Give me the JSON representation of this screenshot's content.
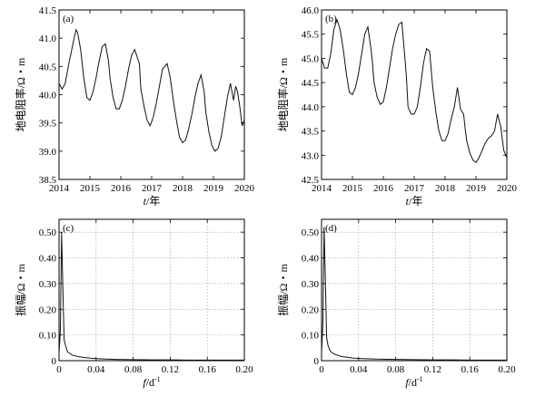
{
  "chart_data": [
    {
      "type": "line",
      "panel_label": "(a)",
      "xlabel_var": "t",
      "xlabel_unit": "/年",
      "ylabel": "地电阻率/Ω・m",
      "xlim": [
        2014,
        2020
      ],
      "ylim": [
        38.5,
        41.5
      ],
      "xticks": [
        "2014",
        "2015",
        "2016",
        "2017",
        "2018",
        "2019",
        "2020"
      ],
      "yticks": [
        "38.5",
        "39.0",
        "39.5",
        "40.0",
        "40.5",
        "41.0",
        "41.5"
      ],
      "grid": false,
      "series": [
        {
          "x": [
            2014.0,
            2014.1,
            2014.2,
            2014.3,
            2014.45,
            2014.55,
            2014.6,
            2014.7,
            2014.8,
            2014.9,
            2015.0,
            2015.1,
            2015.2,
            2015.3,
            2015.4,
            2015.5,
            2015.6,
            2015.65,
            2015.75,
            2015.85,
            2015.95,
            2016.05,
            2016.15,
            2016.25,
            2016.35,
            2016.45,
            2016.6,
            2016.65,
            2016.75,
            2016.85,
            2016.95,
            2017.05,
            2017.15,
            2017.25,
            2017.35,
            2017.5,
            2017.6,
            2017.7,
            2017.8,
            2017.9,
            2018.0,
            2018.1,
            2018.2,
            2018.3,
            2018.4,
            2018.5,
            2018.6,
            2018.7,
            2018.75,
            2018.85,
            2018.95,
            2019.05,
            2019.15,
            2019.25,
            2019.35,
            2019.45,
            2019.55,
            2019.65,
            2019.72,
            2019.78,
            2019.85,
            2019.93,
            2020.0
          ],
          "y": [
            40.2,
            40.1,
            40.2,
            40.5,
            40.9,
            41.15,
            41.1,
            40.8,
            40.3,
            39.95,
            39.9,
            40.05,
            40.3,
            40.6,
            40.85,
            40.9,
            40.6,
            40.3,
            39.95,
            39.75,
            39.75,
            39.9,
            40.15,
            40.45,
            40.7,
            40.8,
            40.55,
            40.1,
            39.8,
            39.55,
            39.45,
            39.6,
            39.85,
            40.15,
            40.45,
            40.55,
            40.3,
            39.9,
            39.55,
            39.25,
            39.15,
            39.2,
            39.4,
            39.65,
            39.95,
            40.2,
            40.35,
            40.05,
            39.7,
            39.35,
            39.1,
            39.0,
            39.05,
            39.25,
            39.6,
            39.95,
            40.2,
            39.9,
            40.15,
            40.05,
            39.8,
            39.45,
            39.55
          ]
        }
      ]
    },
    {
      "type": "line",
      "panel_label": "(b)",
      "xlabel_var": "t",
      "xlabel_unit": "/年",
      "ylabel": "地电阻率/Ω・m",
      "xlim": [
        2014,
        2020
      ],
      "ylim": [
        42.5,
        46.0
      ],
      "xticks": [
        "2014",
        "2015",
        "2016",
        "2017",
        "2018",
        "2019",
        "2020"
      ],
      "yticks": [
        "42.5",
        "43.0",
        "43.5",
        "44.0",
        "44.5",
        "45.0",
        "45.5",
        "46.0"
      ],
      "grid": false,
      "series": [
        {
          "x": [
            2014.0,
            2014.1,
            2014.2,
            2014.3,
            2014.4,
            2014.5,
            2014.6,
            2014.7,
            2014.8,
            2014.9,
            2015.0,
            2015.1,
            2015.2,
            2015.3,
            2015.4,
            2015.5,
            2015.6,
            2015.65,
            2015.7,
            2015.8,
            2015.9,
            2016.0,
            2016.1,
            2016.2,
            2016.3,
            2016.4,
            2016.5,
            2016.6,
            2016.7,
            2016.75,
            2016.8,
            2016.9,
            2017.0,
            2017.1,
            2017.2,
            2017.3,
            2017.4,
            2017.5,
            2017.6,
            2017.7,
            2017.8,
            2017.9,
            2018.0,
            2018.1,
            2018.2,
            2018.3,
            2018.4,
            2018.5,
            2018.6,
            2018.65,
            2018.7,
            2018.8,
            2018.9,
            2019.0,
            2019.1,
            2019.2,
            2019.3,
            2019.4,
            2019.5,
            2019.6,
            2019.7,
            2019.8,
            2019.9,
            2020.0
          ],
          "y": [
            45.0,
            44.8,
            44.8,
            45.1,
            45.6,
            45.8,
            45.6,
            45.2,
            44.7,
            44.3,
            44.25,
            44.4,
            44.7,
            45.1,
            45.5,
            45.65,
            45.2,
            44.9,
            44.5,
            44.2,
            44.05,
            44.1,
            44.4,
            44.8,
            45.2,
            45.5,
            45.7,
            45.75,
            45.0,
            44.6,
            44.0,
            43.85,
            43.85,
            44.0,
            44.4,
            44.9,
            45.2,
            45.15,
            44.4,
            43.9,
            43.5,
            43.3,
            43.3,
            43.45,
            43.75,
            44.0,
            44.4,
            43.95,
            43.85,
            43.55,
            43.3,
            43.05,
            42.9,
            42.85,
            42.95,
            43.1,
            43.25,
            43.35,
            43.4,
            43.5,
            43.85,
            43.6,
            43.1,
            42.95
          ]
        }
      ]
    },
    {
      "type": "line",
      "panel_label": "(c)",
      "xlabel_var": "f",
      "xlabel_unit": "/d",
      "xlabel_sup": "-1",
      "ylabel": "振幅/Ω・m",
      "xlim": [
        0,
        0.2
      ],
      "ylim": [
        0,
        0.55
      ],
      "xticks": [
        "0",
        "0.04",
        "0.08",
        "0.12",
        "0.16",
        "0.20"
      ],
      "yticks": [
        "0",
        "0.10",
        "0.20",
        "0.30",
        "0.40",
        "0.50"
      ],
      "grid": true,
      "series": [
        {
          "x": [
            0.0,
            0.0015,
            0.0027,
            0.004,
            0.0055,
            0.007,
            0.009,
            0.011,
            0.014,
            0.018,
            0.022,
            0.028,
            0.035,
            0.045,
            0.06,
            0.08,
            0.1,
            0.12,
            0.14,
            0.16,
            0.18,
            0.2
          ],
          "y": [
            0.03,
            0.12,
            0.5,
            0.3,
            0.08,
            0.06,
            0.035,
            0.03,
            0.022,
            0.018,
            0.015,
            0.012,
            0.009,
            0.007,
            0.005,
            0.004,
            0.003,
            0.003,
            0.002,
            0.002,
            0.002,
            0.002
          ]
        }
      ]
    },
    {
      "type": "line",
      "panel_label": "(d)",
      "xlabel_var": "f",
      "xlabel_unit": "/d",
      "xlabel_sup": "-1",
      "ylabel": "振幅/Ω・m",
      "xlim": [
        0,
        0.2
      ],
      "ylim": [
        0,
        0.55
      ],
      "xticks": [
        "0",
        "0.04",
        "0.08",
        "0.12",
        "0.16",
        "0.20"
      ],
      "yticks": [
        "0",
        "0.10",
        "0.20",
        "0.30",
        "0.40",
        "0.50"
      ],
      "grid": true,
      "series": [
        {
          "x": [
            0.0,
            0.0015,
            0.0027,
            0.004,
            0.0055,
            0.007,
            0.009,
            0.011,
            0.014,
            0.018,
            0.022,
            0.028,
            0.035,
            0.045,
            0.06,
            0.08,
            0.1,
            0.12,
            0.14,
            0.16,
            0.18,
            0.2
          ],
          "y": [
            0.03,
            0.15,
            0.52,
            0.33,
            0.09,
            0.06,
            0.04,
            0.032,
            0.025,
            0.02,
            0.016,
            0.013,
            0.01,
            0.008,
            0.006,
            0.005,
            0.004,
            0.003,
            0.003,
            0.002,
            0.002,
            0.002
          ]
        }
      ]
    }
  ]
}
